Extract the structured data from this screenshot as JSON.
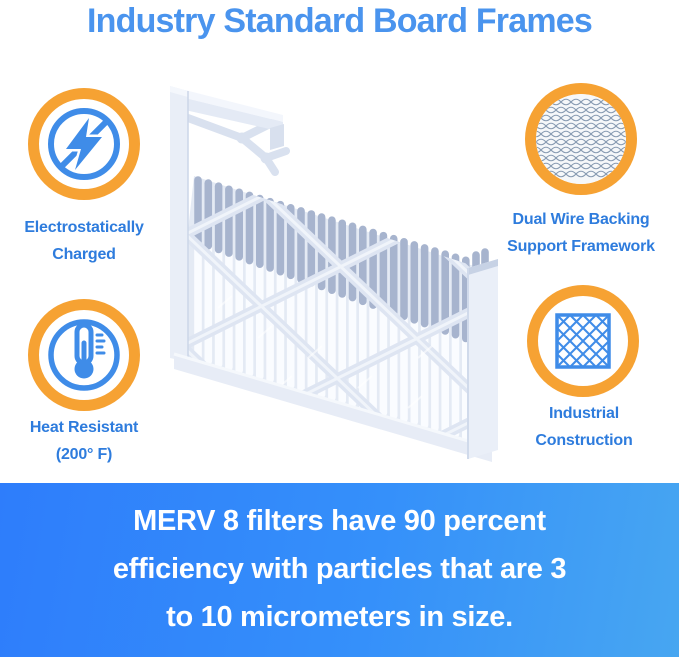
{
  "title": {
    "text": "Industry Standard Board Frames",
    "color": "#4a94ee"
  },
  "features": [
    {
      "id": "electrostatically-charged",
      "icon": "lightning-bolt-circle-icon",
      "lines": [
        "Electrostatically",
        "Charged"
      ]
    },
    {
      "id": "dual-wire-backing",
      "icon": "wire-mesh-photo-icon",
      "lines": [
        "Dual Wire Backing",
        "Support Framework"
      ]
    },
    {
      "id": "heat-resistant",
      "icon": "thermometer-icon",
      "lines": [
        "Heat Resistant",
        "(200° F)"
      ]
    },
    {
      "id": "industrial-construction",
      "icon": "diamond-lattice-square-icon",
      "lines": [
        "Industrial",
        "Construction"
      ]
    }
  ],
  "product": {
    "illustration": "pleated-air-filter-with-board-frame"
  },
  "banner": {
    "lines": [
      "MERV 8 filters have 90 percent",
      "efficiency with particles that are 3",
      "to 10 micrometers in size."
    ],
    "text_color": "#ffffff",
    "gradient_start": "#2e7dfb",
    "gradient_end": "#47a6f1"
  },
  "colors": {
    "accent_orange": "#f6a233",
    "icon_blue": "#3f8ce8",
    "label_blue": "#2e7cdd",
    "frame_light": "#e7ecf6",
    "pleat_gray": "#a7b4ce"
  }
}
